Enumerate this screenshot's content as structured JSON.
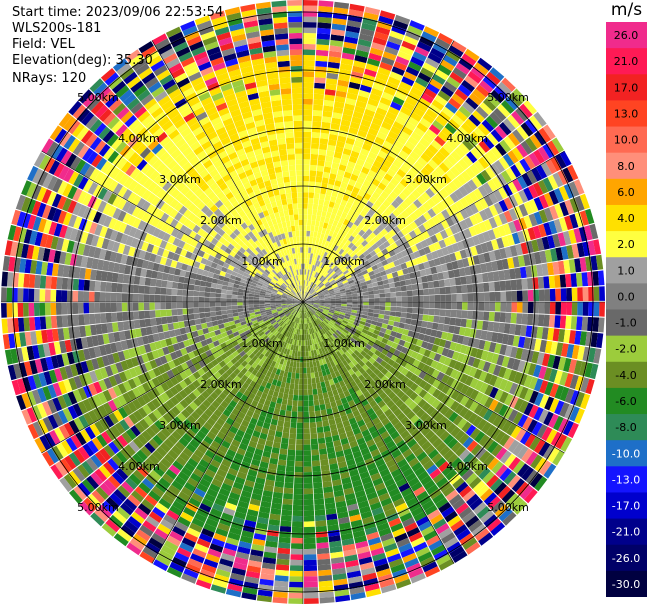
{
  "header": {
    "start_time": "Start time: 2023/09/06 22:53:54",
    "instrument": "WLS200s-181",
    "field": "Field: VEL",
    "elevation": "Elevation(deg): 35.30",
    "nrays": "NRays: 120"
  },
  "colorbar": {
    "unit": "m/s",
    "bins": [
      {
        "label": "26.0",
        "color": "#f02b8c"
      },
      {
        "label": "21.0",
        "color": "#ff1a55"
      },
      {
        "label": "17.0",
        "color": "#f22222"
      },
      {
        "label": "13.0",
        "color": "#ff4422"
      },
      {
        "label": "10.0",
        "color": "#ff6a52"
      },
      {
        "label": "8.0",
        "color": "#ff8f7a"
      },
      {
        "label": "6.0",
        "color": "#ffa500"
      },
      {
        "label": "4.0",
        "color": "#ffe000"
      },
      {
        "label": "2.0",
        "color": "#ffff40"
      },
      {
        "label": "1.0",
        "color": "#a0a0a0"
      },
      {
        "label": "0.0",
        "color": "#808080"
      },
      {
        "label": "-1.0",
        "color": "#696969"
      },
      {
        "label": "-2.0",
        "color": "#9ccc3c"
      },
      {
        "label": "-4.0",
        "color": "#6b8e23"
      },
      {
        "label": "-6.0",
        "color": "#228b22"
      },
      {
        "label": "-8.0",
        "color": "#2e8b57"
      },
      {
        "label": "-10.0",
        "color": "#1e6fc8"
      },
      {
        "label": "-13.0",
        "color": "#1414ff"
      },
      {
        "label": "-17.0",
        "color": "#0000cd"
      },
      {
        "label": "-21.0",
        "color": "#00008b"
      },
      {
        "label": "-26.0",
        "color": "#000068"
      },
      {
        "label": "-30.0",
        "color": "#000040"
      }
    ]
  },
  "chart_data": {
    "type": "heatmap",
    "projection": "polar PPI",
    "field": "VEL",
    "nrays": 120,
    "range_rings_km": [
      "1.00km",
      "2.00km",
      "3.00km",
      "4.00km",
      "5.00km"
    ],
    "max_range_km": 5.2,
    "wind_pattern": {
      "toward_top_velocity_range_ms": [
        2.0,
        8.0
      ],
      "toward_bottom_velocity_range_ms": [
        -8.0,
        -2.0
      ],
      "outer_range_km_noisy": 4.2
    }
  }
}
